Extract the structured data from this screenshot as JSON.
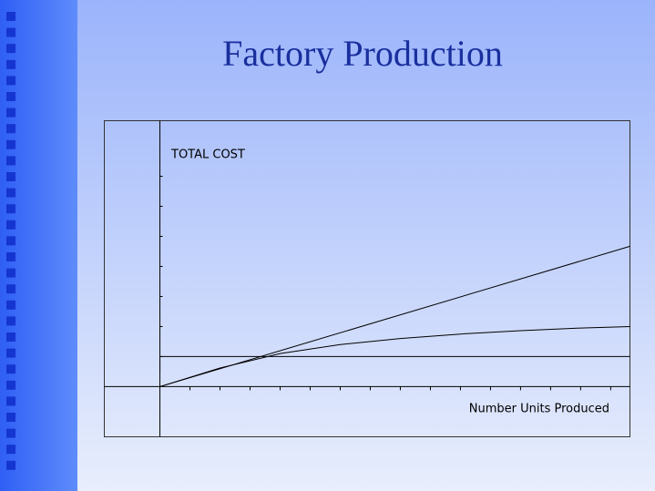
{
  "chart_data": {
    "type": "line",
    "title": "Factory Production",
    "y_label": "TOTAL COST",
    "x_label": "Number Units Produced",
    "xlim": [
      -1.85,
      15.64
    ],
    "ylim": [
      -1.67,
      8.85
    ],
    "xticks": [
      1,
      2,
      3,
      4,
      5,
      6,
      7,
      8,
      9,
      10,
      11,
      12,
      13,
      14,
      15
    ],
    "yticks": [
      1,
      2,
      3,
      4,
      5,
      6,
      7
    ],
    "series": [
      {
        "color": "#000000",
        "x": [
          0,
          15.64
        ],
        "values": [
          0,
          4.67
        ]
      },
      {
        "color": "#000000",
        "x": [
          0,
          2,
          4,
          6,
          8,
          10,
          12,
          14,
          15.64
        ],
        "values": [
          0,
          0.62,
          1.1,
          1.4,
          1.6,
          1.75,
          1.86,
          1.95,
          2.0
        ]
      },
      {
        "color": "#000000",
        "x": [
          0,
          0,
          15.64
        ],
        "values": [
          0.5,
          1,
          1
        ]
      }
    ]
  }
}
